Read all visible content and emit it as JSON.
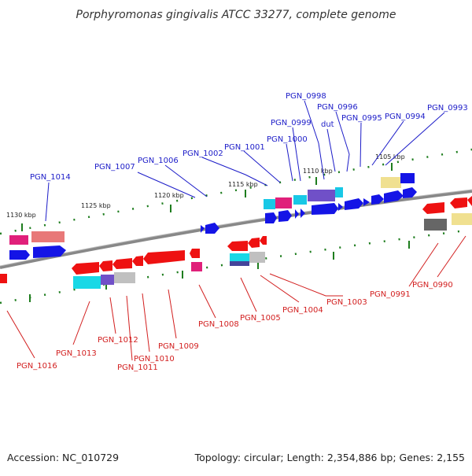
{
  "title": "Porphyromonas gingivalis ATCC 33277, complete genome",
  "footer": {
    "accession": "Accession: NC_010729",
    "summary": "Topology: circular; Length: 2,354,886 bp; Genes: 2,155"
  },
  "scale_labels": [
    "1130 kbp",
    "1125 kbp",
    "1120 kbp",
    "1115 kbp",
    "1110 kbp",
    "1105 kbp"
  ],
  "colors": {
    "forward_label": "#1c1cc8",
    "reverse_label": "#d21e1e",
    "backbone": "#888888",
    "tick": "#1e7d1e"
  },
  "forward_genes": [
    "PGN_1014",
    "PGN_1007",
    "PGN_1006",
    "PGN_1002",
    "PGN_1001",
    "PGN_1000",
    "PGN_0999",
    "PGN_0998",
    "dut",
    "PGN_0996",
    "PGN_0995",
    "PGN_0994",
    "PGN_0993"
  ],
  "reverse_genes": [
    "PGN_1016",
    "PGN_1013",
    "PGN_1012",
    "PGN_1011",
    "PGN_1010",
    "PGN_1009",
    "PGN_1008",
    "PGN_1005",
    "PGN_1004",
    "PGN_1003",
    "PGN_0991",
    "PGN_0990"
  ]
}
